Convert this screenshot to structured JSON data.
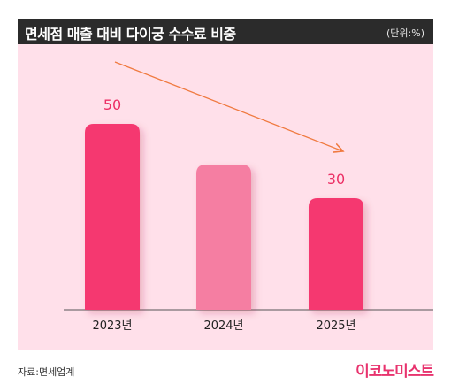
{
  "header": {
    "title": "면세점 매출 대비 다이궁 수수료 비중",
    "unit": "(단위:%)"
  },
  "footer": {
    "source": "자료:면세업계",
    "brand": "이코노미스트"
  },
  "colors": {
    "background": "#ffe0ea",
    "bar_primary": "#f5386f",
    "bar_secondary": "#f57ea2",
    "arrow": "#f07a40",
    "header_bg": "#2b2b2b"
  },
  "chart_data": {
    "type": "bar",
    "categories": [
      "2023년",
      "2024년",
      "2025년"
    ],
    "values": [
      50,
      39,
      30
    ],
    "data_labels": [
      "50",
      "",
      "30"
    ],
    "bar_colors": [
      "#f5386f",
      "#f57ea2",
      "#f5386f"
    ],
    "annotations": [
      "downward trend arrow from 2023 to 2025"
    ],
    "ylim": [
      0,
      60
    ],
    "grid": false,
    "legend": "none"
  }
}
